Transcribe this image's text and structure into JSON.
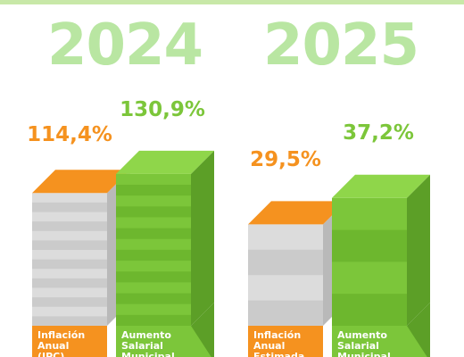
{
  "colors": {
    "year": "#b9e6a2",
    "inflation": "#f5921f",
    "salary": "#7cc63a",
    "salary_dark": "#5c9f27",
    "grey": "#dcdcdc",
    "grey_dark": "#b9b9b9"
  },
  "chart_data": [
    {
      "type": "bar",
      "title": "2024",
      "categories": [
        "Inflación Anual (IPC)",
        "Aumento Salarial Municipal"
      ],
      "series": [
        {
          "values": [
            114.4,
            130.9
          ]
        }
      ],
      "value_labels": [
        "114,4%",
        "130,9%"
      ]
    },
    {
      "type": "bar",
      "title": "2025",
      "categories": [
        "Inflación Anual Estimada",
        "Aumento Salarial Municipal"
      ],
      "series": [
        {
          "values": [
            29.5,
            37.2
          ]
        }
      ],
      "value_labels": [
        "29,5%",
        "37,2%"
      ]
    }
  ]
}
